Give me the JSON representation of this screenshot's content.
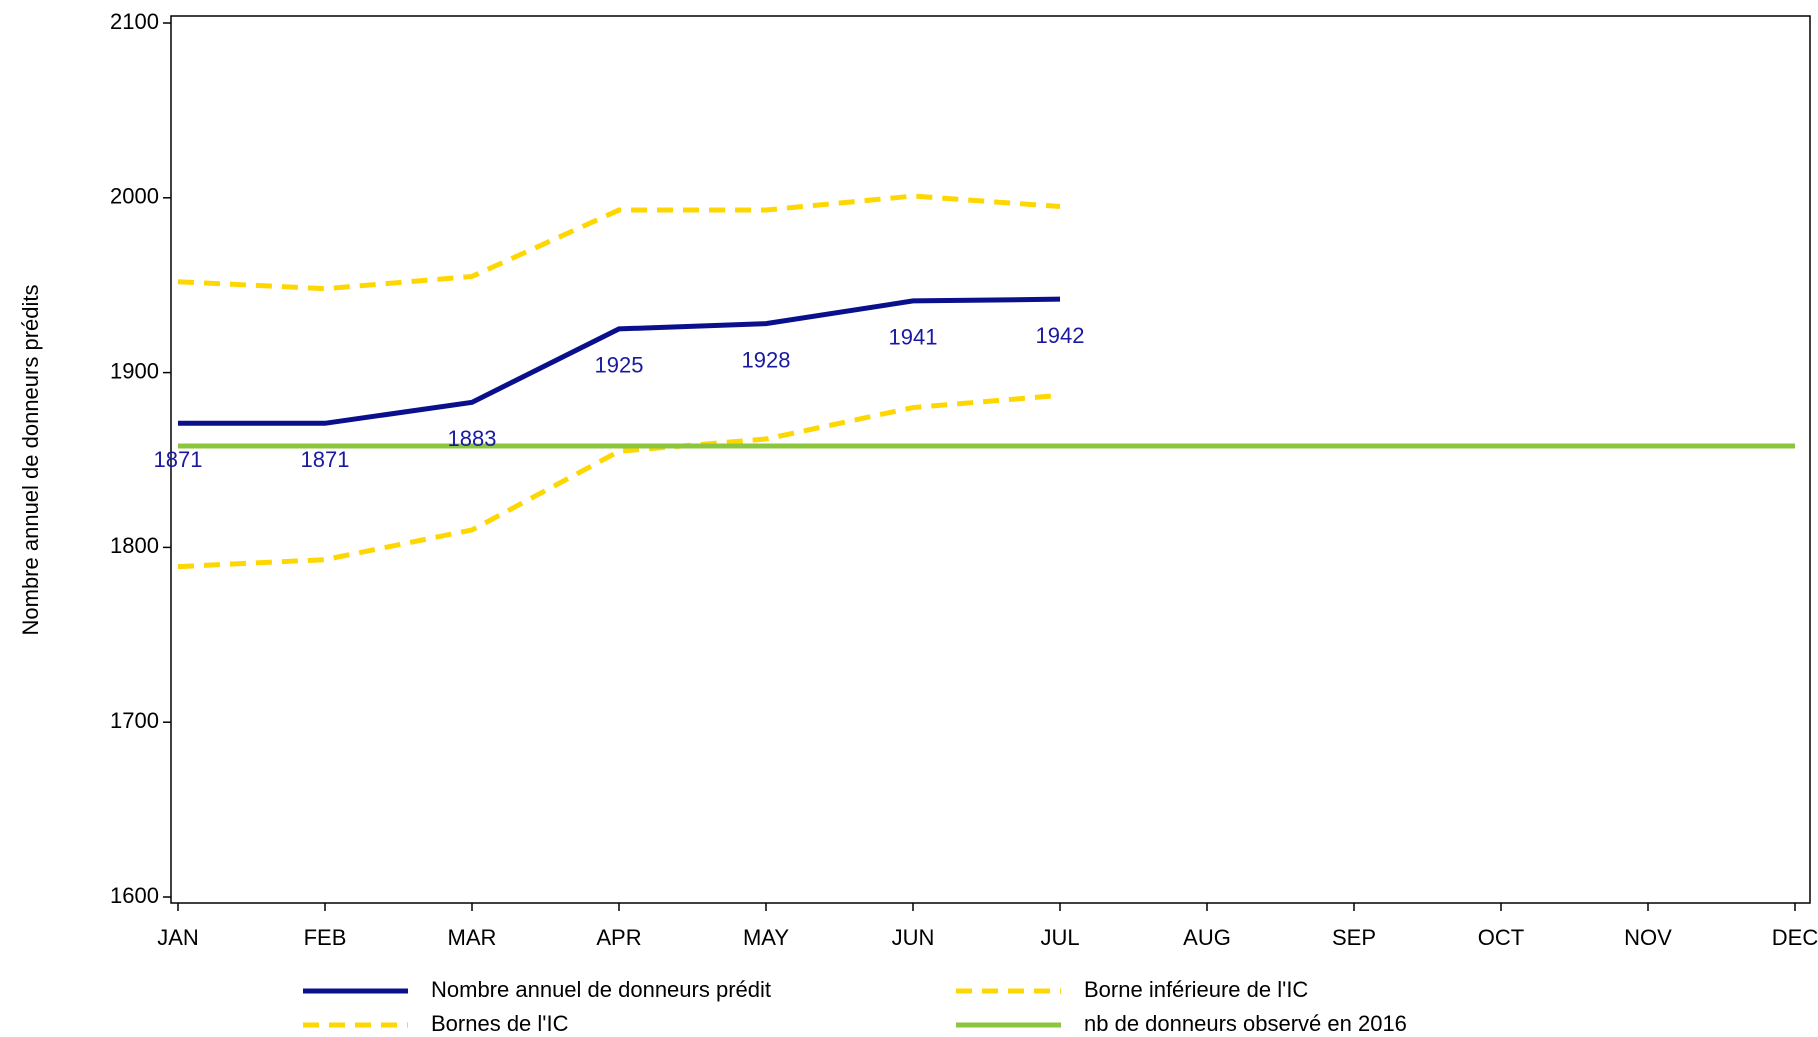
{
  "chart_data": {
    "type": "line",
    "y_label": "Nombre annuel de donneurs prédits",
    "categories": [
      "JAN",
      "FEB",
      "MAR",
      "APR",
      "MAY",
      "JUN",
      "JUL",
      "AUG",
      "SEP",
      "OCT",
      "NOV",
      "DEC"
    ],
    "series": [
      {
        "name": "Nombre annuel de donneurs prédit",
        "color": "#0a0f8c",
        "dashed": false,
        "data_labels": true,
        "values": [
          1871,
          1871,
          1883,
          1925,
          1928,
          1941,
          1942,
          null,
          null,
          null,
          null,
          null
        ]
      },
      {
        "name": "Borne inférieure de l'IC",
        "color": "#ffd700",
        "dashed": true,
        "data_labels": false,
        "values": [
          1789,
          1793,
          1810,
          1855,
          1862,
          1880,
          1887,
          null,
          null,
          null,
          null,
          null
        ]
      },
      {
        "name": "Bornes  de l'IC",
        "color": "#ffd700",
        "dashed": true,
        "data_labels": false,
        "values": [
          1952,
          1948,
          1955,
          1993,
          1993,
          2001,
          1995,
          null,
          null,
          null,
          null,
          null
        ]
      },
      {
        "name": "nb de donneurs observé en 2016",
        "color": "#8cc63f",
        "dashed": false,
        "data_labels": false,
        "values": [
          1858,
          1858,
          1858,
          1858,
          1858,
          1858,
          1858,
          1858,
          1858,
          1858,
          1858,
          1858
        ]
      }
    ],
    "ylim": [
      1600,
      2100
    ],
    "yticks": [
      1600,
      1700,
      1800,
      1900,
      2000,
      2100
    ],
    "grid": false
  }
}
